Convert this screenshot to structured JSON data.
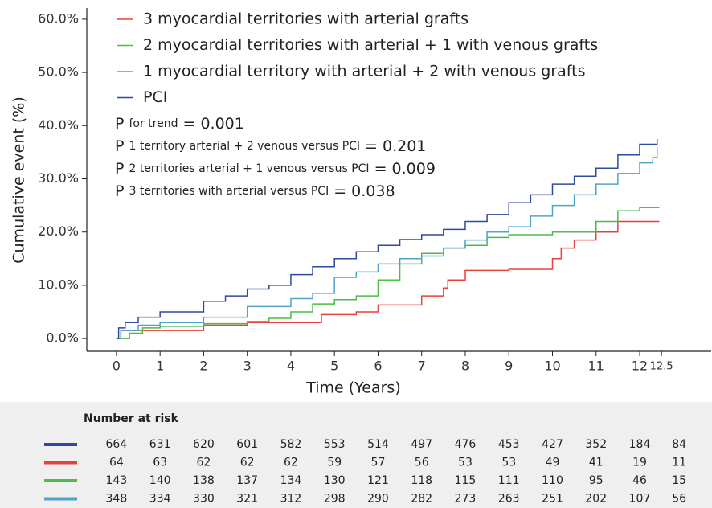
{
  "chart_data": {
    "type": "line",
    "step": true,
    "xlabel": "Time (Years)",
    "ylabel": "Cumulative event (%)",
    "xlim": [
      -0.68,
      13.64
    ],
    "ylim": [
      -2.4,
      62.1
    ],
    "xticks": [
      0,
      1,
      2,
      3,
      4,
      5,
      6,
      7,
      8,
      9,
      10,
      11,
      12,
      12.5
    ],
    "yticks": [
      {
        "value": 0,
        "label": "0.0%"
      },
      {
        "value": 10,
        "label": "10.0%"
      },
      {
        "value": 20,
        "label": "20.0%"
      },
      {
        "value": 30,
        "label": "30.0%"
      },
      {
        "value": 40,
        "label": "40.0%"
      },
      {
        "value": 50,
        "label": "50.0%"
      },
      {
        "value": 60,
        "label": "60.0%"
      }
    ],
    "series": [
      {
        "name": "3 myocardial territories with arterial grafts",
        "color": "#e8413c",
        "x": [
          0,
          0.1,
          1,
          2,
          3,
          4.5,
          4.7,
          5.5,
          6,
          7,
          7.5,
          7.6,
          8,
          9,
          10,
          10.2,
          10.5,
          11,
          11.5,
          12.45
        ],
        "values": [
          0,
          1.5,
          1.5,
          2.5,
          3,
          3,
          4.5,
          5,
          6.3,
          8,
          9.5,
          11,
          12.8,
          13,
          15,
          17,
          18.5,
          20,
          22,
          22
        ]
      },
      {
        "name": "2 myocardial territories with arterial + 1 with venous grafts",
        "color": "#4cbb47",
        "x": [
          0,
          0.3,
          0.6,
          1,
          2,
          3,
          3.5,
          4,
          4.5,
          5,
          5.5,
          6,
          6.5,
          7,
          7.5,
          8,
          8.5,
          9,
          10,
          11,
          11.5,
          12,
          12.45
        ],
        "values": [
          0,
          1,
          2,
          2.3,
          2.8,
          3.2,
          3.8,
          5,
          6.5,
          7.3,
          8,
          11,
          14,
          16,
          17,
          17.5,
          19,
          19.5,
          20,
          22,
          24,
          24.6,
          24.6
        ]
      },
      {
        "name": "1 myocardial territory with arterial + 2 with venous grafts",
        "color": "#4fa3c7",
        "x": [
          0,
          0.1,
          0.5,
          1,
          2,
          3,
          4,
          4.5,
          5,
          5.5,
          6,
          6.5,
          7,
          7.5,
          8,
          8.5,
          9,
          9.5,
          10,
          10.5,
          11,
          11.5,
          12,
          12.3,
          12.4
        ],
        "values": [
          0,
          1.5,
          2.5,
          3,
          4,
          6,
          7.5,
          8.5,
          11.5,
          12.5,
          14,
          15,
          15.5,
          17,
          18.5,
          20,
          21,
          23,
          25,
          27,
          29,
          31,
          33,
          34,
          36
        ]
      },
      {
        "name": "PCI",
        "color": "#2e4a9e",
        "x": [
          0,
          0.05,
          0.2,
          0.5,
          1,
          2,
          2.5,
          3,
          3.5,
          4,
          4.5,
          5,
          5.5,
          6,
          6.5,
          7,
          7.5,
          8,
          8.5,
          9,
          9.5,
          10,
          10.5,
          11,
          11.5,
          12,
          12.4
        ],
        "values": [
          0,
          2,
          3,
          4,
          5,
          7,
          8,
          9.3,
          10,
          12,
          13.5,
          15,
          16.3,
          17.5,
          18.6,
          19.5,
          20.5,
          22,
          23.3,
          25.5,
          27,
          29,
          30.5,
          32,
          34.5,
          36.5,
          37.5
        ]
      }
    ],
    "annotations": [
      {
        "main": "P",
        "sub": "for trend",
        "rest": "= 0.001"
      },
      {
        "main": "P",
        "sub": "1 territory arterial + 2 venous versus PCI",
        "rest": "= 0.201"
      },
      {
        "main": "P",
        "sub": "2 territories arterial + 1 venous versus  PCI",
        "rest": "= 0.009"
      },
      {
        "main": "P",
        "sub": "3 territories with arterial versus PCI",
        "rest": "= 0.038"
      }
    ]
  },
  "risk_table": {
    "title": "Number at risk",
    "rows": [
      {
        "color": "#2e4a9e",
        "values": [
          664,
          631,
          620,
          601,
          582,
          553,
          514,
          497,
          476,
          453,
          427,
          352,
          184,
          84
        ]
      },
      {
        "color": "#e8413c",
        "values": [
          64,
          63,
          62,
          62,
          62,
          59,
          57,
          56,
          53,
          53,
          49,
          41,
          19,
          11
        ]
      },
      {
        "color": "#4cbb47",
        "values": [
          143,
          140,
          138,
          137,
          134,
          130,
          121,
          118,
          115,
          111,
          110,
          95,
          46,
          15
        ]
      },
      {
        "color": "#4fa3c7",
        "values": [
          348,
          334,
          330,
          321,
          312,
          298,
          290,
          282,
          273,
          263,
          251,
          202,
          107,
          56
        ]
      }
    ]
  }
}
